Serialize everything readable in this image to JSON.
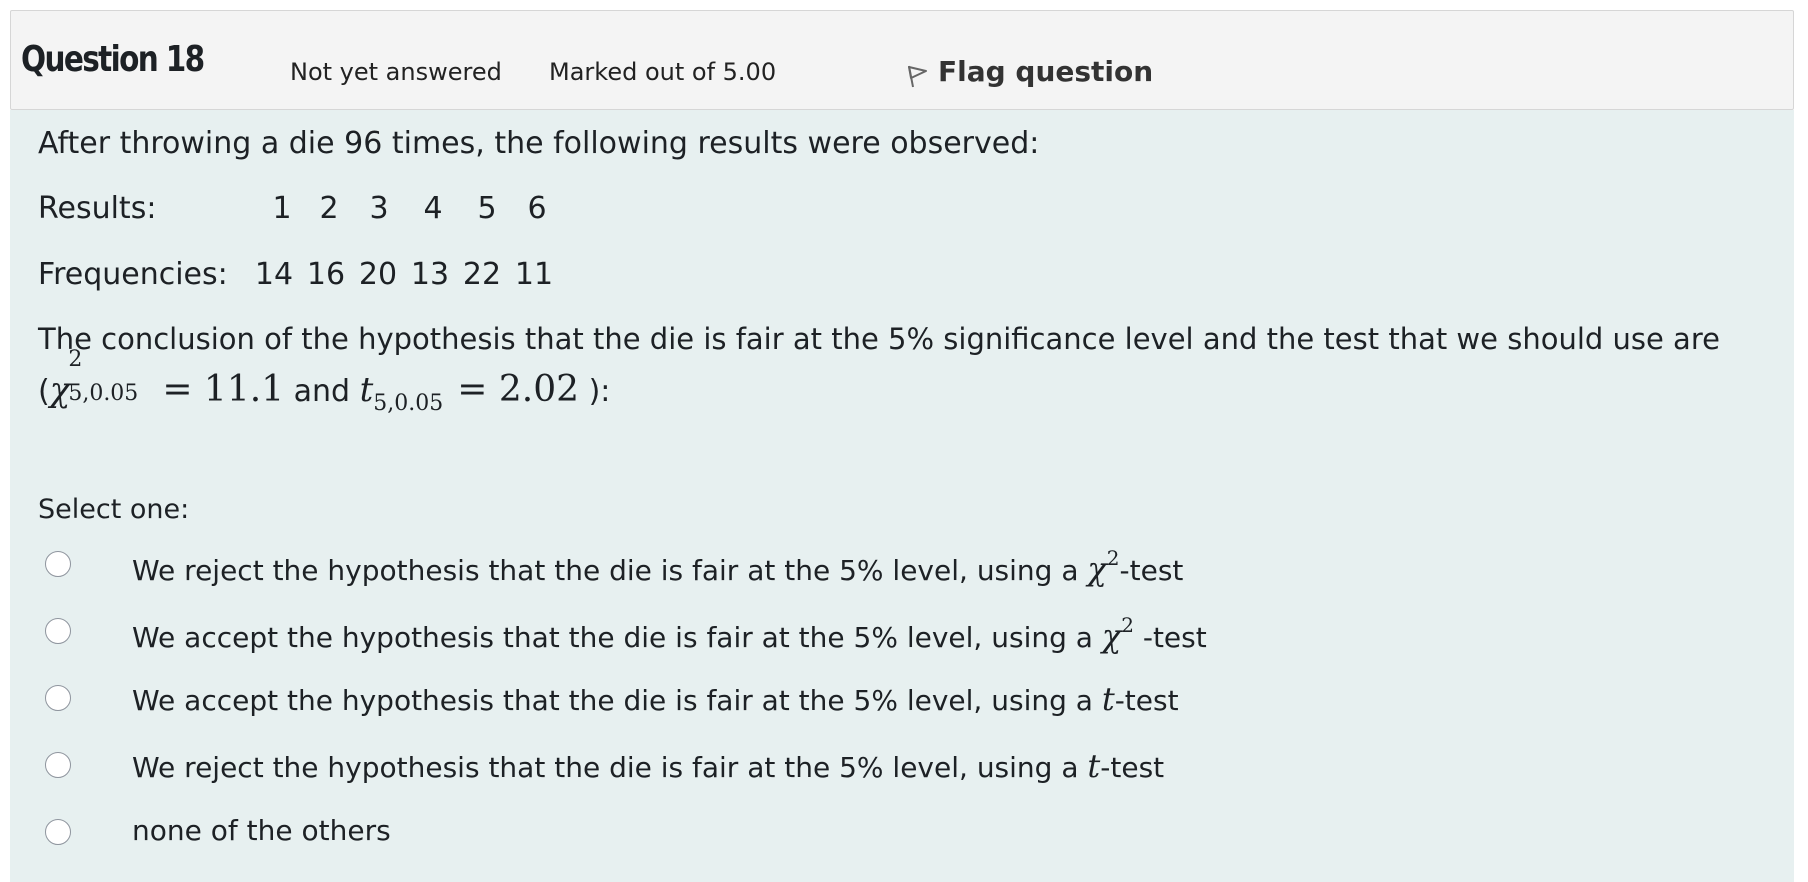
{
  "header": {
    "question_no": "Question 18",
    "state": "Not yet answered",
    "grade": "Marked out of 5.00",
    "flag_label": "Flag question"
  },
  "question": {
    "intro": "After throwing a die 96 times, the following results were observed:",
    "results_label": "Results:",
    "results": [
      "1",
      "2",
      "3",
      "4",
      "5",
      "6"
    ],
    "frequencies_label": "Frequencies:",
    "frequencies": [
      "14",
      "16",
      "20",
      "13",
      "22",
      "11"
    ],
    "prompt_line1": "The conclusion of the hypothesis that the die is fair at the 5% significance level and the test that we should use are",
    "math": {
      "open": "(",
      "chi": "χ",
      "chi_sup": "2",
      "chi_sub": "5,0.05",
      "eq1": "= 11.1",
      "and": " and ",
      "t": "t",
      "t_sub": "5,0.05",
      "eq2": "= 2.02",
      "close": " ):"
    },
    "select_label": "Select one:"
  },
  "answers": [
    {
      "pre": "We reject the hypothesis that the die is fair at the 5% level, using a ",
      "sym": "χ",
      "sup": "2",
      "post": "-test"
    },
    {
      "pre": "We accept the hypothesis that the die is fair at the 5% level, using a ",
      "sym": "χ",
      "sup": "2",
      "post": " -test"
    },
    {
      "pre": "We accept the hypothesis that the die is fair at the 5% level, using a ",
      "sym": "t",
      "sup": "",
      "post": "-test"
    },
    {
      "pre": "We reject the hypothesis that the die is fair at the 5% level, using a ",
      "sym": "t",
      "sup": "",
      "post": "-test"
    },
    {
      "pre": "none of the others",
      "sym": "",
      "sup": "",
      "post": ""
    }
  ],
  "icons": {
    "flag": "flag-icon",
    "radio": "radio-unchecked-icon"
  },
  "colors": {
    "header_bg": "#f4f4f4",
    "body_bg": "#e7f0f0",
    "text": "#1d2125"
  }
}
